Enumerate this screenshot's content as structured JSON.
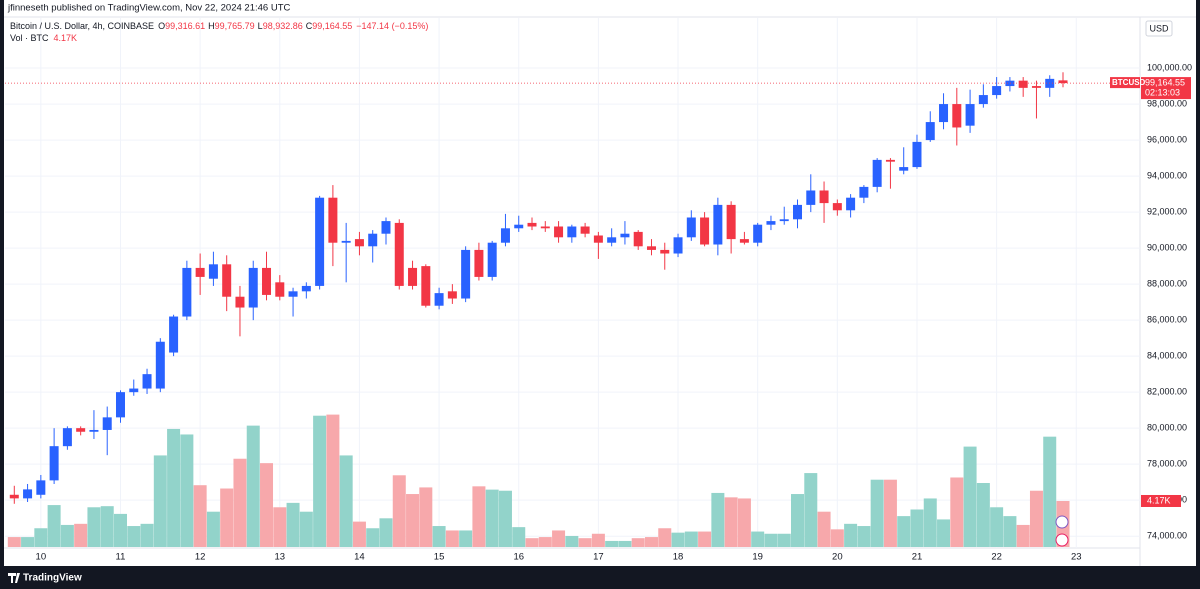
{
  "header": {
    "publisher": "jfinneseth published on TradingView.com, Nov 22, 2024 21:46 UTC"
  },
  "footer": {
    "brand": "TradingView"
  },
  "chart_data": {
    "type": "candlestick",
    "symbol": "Bitcoin / U.S. Dollar, 4h, COINBASE",
    "ohlc_legend": [
      {
        "key": "O",
        "value": "99,316.61"
      },
      {
        "key": "H",
        "value": "99,765.79"
      },
      {
        "key": "L",
        "value": "98,932.86"
      },
      {
        "key": "C",
        "value": "99,164.55"
      }
    ],
    "change": "−147.14 (−0.15%)",
    "volume_title": "Vol · BTC",
    "currency": "USD",
    "ticker": "BTCUSD",
    "last_price_label": "99,164.55",
    "countdown": "02:13:03",
    "last_volume_label": "4.17K",
    "open": [
      76300,
      76100,
      76300,
      77100,
      79000,
      80000,
      79800,
      79900,
      80600,
      82000,
      82200,
      82200,
      84200,
      86200,
      88900,
      88300,
      89100,
      87300,
      86700,
      88900,
      88100,
      87300,
      87600,
      87900,
      92800,
      90300,
      90500,
      90100,
      90800,
      91400,
      88900,
      89000,
      86800,
      87600,
      87200,
      89900,
      88400,
      90300,
      91100,
      91400,
      91200,
      91200,
      90600,
      91200,
      90700,
      90300,
      90600,
      90900,
      90100,
      89900,
      89700,
      90600,
      91700,
      90200,
      92400,
      90500,
      90300,
      91300,
      91500,
      91600,
      92400,
      93200,
      92500,
      92100,
      92800,
      93400,
      94900,
      94300,
      94500,
      96000,
      97000,
      98000,
      96800,
      98000,
      98500,
      99000,
      99300,
      99000,
      98900,
      99316.61
    ],
    "high": [
      76800,
      76900,
      77400,
      80000,
      80100,
      80100,
      81000,
      81200,
      82100,
      82700,
      83300,
      85000,
      86300,
      89300,
      89700,
      89800,
      89600,
      87900,
      89300,
      89800,
      88500,
      87800,
      88100,
      92900,
      93500,
      91400,
      90900,
      91000,
      91700,
      91600,
      89300,
      89100,
      87800,
      88000,
      90100,
      90300,
      90400,
      91900,
      91800,
      91700,
      91500,
      91500,
      91300,
      91400,
      90900,
      91100,
      91500,
      91000,
      90500,
      90300,
      90800,
      92100,
      92000,
      92800,
      92600,
      90900,
      91400,
      91800,
      92300,
      92700,
      94100,
      93700,
      92700,
      93000,
      93500,
      95000,
      95000,
      95600,
      96300,
      97600,
      98600,
      98900,
      98800,
      99100,
      99500,
      99500,
      99500,
      99300,
      99600,
      99765.79
    ],
    "low": [
      75800,
      75900,
      76100,
      76900,
      78800,
      79600,
      79400,
      78500,
      80300,
      81800,
      81900,
      82000,
      84000,
      86000,
      87400,
      87900,
      86500,
      85100,
      86000,
      87100,
      87100,
      86200,
      87200,
      87700,
      89000,
      88100,
      89600,
      89200,
      90200,
      87700,
      87700,
      86700,
      86600,
      86900,
      87000,
      88200,
      88200,
      90100,
      90900,
      91000,
      90900,
      90300,
      90300,
      90600,
      89400,
      90100,
      90200,
      89900,
      89600,
      88800,
      89500,
      90400,
      90100,
      89600,
      89700,
      90200,
      90100,
      91000,
      91300,
      91100,
      92000,
      91400,
      91800,
      91700,
      92500,
      93100,
      93300,
      94100,
      94400,
      95900,
      96600,
      95700,
      96400,
      97800,
      98300,
      98700,
      98400,
      97200,
      98400,
      98932.86
    ],
    "close": [
      76100,
      76600,
      77100,
      79000,
      80000,
      79800,
      79900,
      80600,
      82000,
      82200,
      83000,
      84800,
      86200,
      88900,
      88400,
      89100,
      87300,
      86700,
      88900,
      87400,
      87300,
      87600,
      87900,
      92800,
      90300,
      90400,
      90100,
      90800,
      91500,
      87900,
      87900,
      86800,
      87500,
      87200,
      89900,
      88400,
      90300,
      91100,
      91300,
      91200,
      91100,
      90600,
      91200,
      90800,
      90300,
      90600,
      90800,
      90100,
      89900,
      89700,
      90600,
      91700,
      90200,
      92400,
      90500,
      90300,
      91300,
      91500,
      91600,
      92400,
      93200,
      92500,
      92100,
      92800,
      93400,
      94900,
      94800,
      94500,
      95900,
      97000,
      98000,
      96700,
      98000,
      98500,
      99000,
      99300,
      98900,
      98900,
      99400,
      99164.55
    ],
    "volume": [
      900,
      900,
      1700,
      3800,
      2000,
      2100,
      3600,
      3700,
      3000,
      1900,
      2100,
      8300,
      10700,
      10200,
      5600,
      3200,
      5300,
      8000,
      11000,
      7600,
      3600,
      4000,
      3200,
      11900,
      12000,
      8300,
      2300,
      1700,
      2600,
      6500,
      4800,
      5400,
      1900,
      1500,
      1500,
      5500,
      5200,
      5100,
      1800,
      800,
      900,
      1500,
      1000,
      800,
      1200,
      550,
      550,
      800,
      900,
      1700,
      1300,
      1400,
      1400,
      4900,
      4500,
      4400,
      1400,
      1200,
      1200,
      4800,
      6700,
      3200,
      1600,
      2100,
      1900,
      6100,
      6100,
      2800,
      3400,
      4400,
      2500,
      6300,
      9100,
      5800,
      3600,
      2800,
      2000,
      5100,
      10000,
      4170
    ],
    "up_color": "#2962ff",
    "down_color": "#f23645",
    "volume_up_color": "#92d3ca",
    "volume_down_color": "#f7a8ab",
    "ylim": [
      72400,
      102780
    ],
    "yticks": [
      {
        "value": 74000,
        "label": "74,000.00"
      },
      {
        "value": 76000,
        "label": "76,000.00"
      },
      {
        "value": 78000,
        "label": "78,000.00"
      },
      {
        "value": 80000,
        "label": "80,000.00"
      },
      {
        "value": 82000,
        "label": "82,000.00"
      },
      {
        "value": 84000,
        "label": "84,000.00"
      },
      {
        "value": 86000,
        "label": "86,000.00"
      },
      {
        "value": 88000,
        "label": "88,000.00"
      },
      {
        "value": 90000,
        "label": "90,000.00"
      },
      {
        "value": 92000,
        "label": "92,000.00"
      },
      {
        "value": 94000,
        "label": "94,000.00"
      },
      {
        "value": 96000,
        "label": "96,000.00"
      },
      {
        "value": 98000,
        "label": "98,000.00"
      },
      {
        "value": 100000,
        "label": "100,000.00"
      }
    ],
    "xlim": [
      -0.7,
      84.8
    ],
    "xticks": [
      {
        "value": 2,
        "label": "10"
      },
      {
        "value": 8,
        "label": "11"
      },
      {
        "value": 14,
        "label": "12"
      },
      {
        "value": 20,
        "label": "13"
      },
      {
        "value": 26,
        "label": "14"
      },
      {
        "value": 32,
        "label": "15"
      },
      {
        "value": 38,
        "label": "16"
      },
      {
        "value": 44,
        "label": "17"
      },
      {
        "value": 50,
        "label": "18"
      },
      {
        "value": 56,
        "label": "19"
      },
      {
        "value": 62,
        "label": "20"
      },
      {
        "value": 68,
        "label": "21"
      },
      {
        "value": 74,
        "label": "22"
      },
      {
        "value": 80,
        "label": "23"
      }
    ],
    "volume_ylim": [
      0,
      15000
    ],
    "grid": true
  }
}
